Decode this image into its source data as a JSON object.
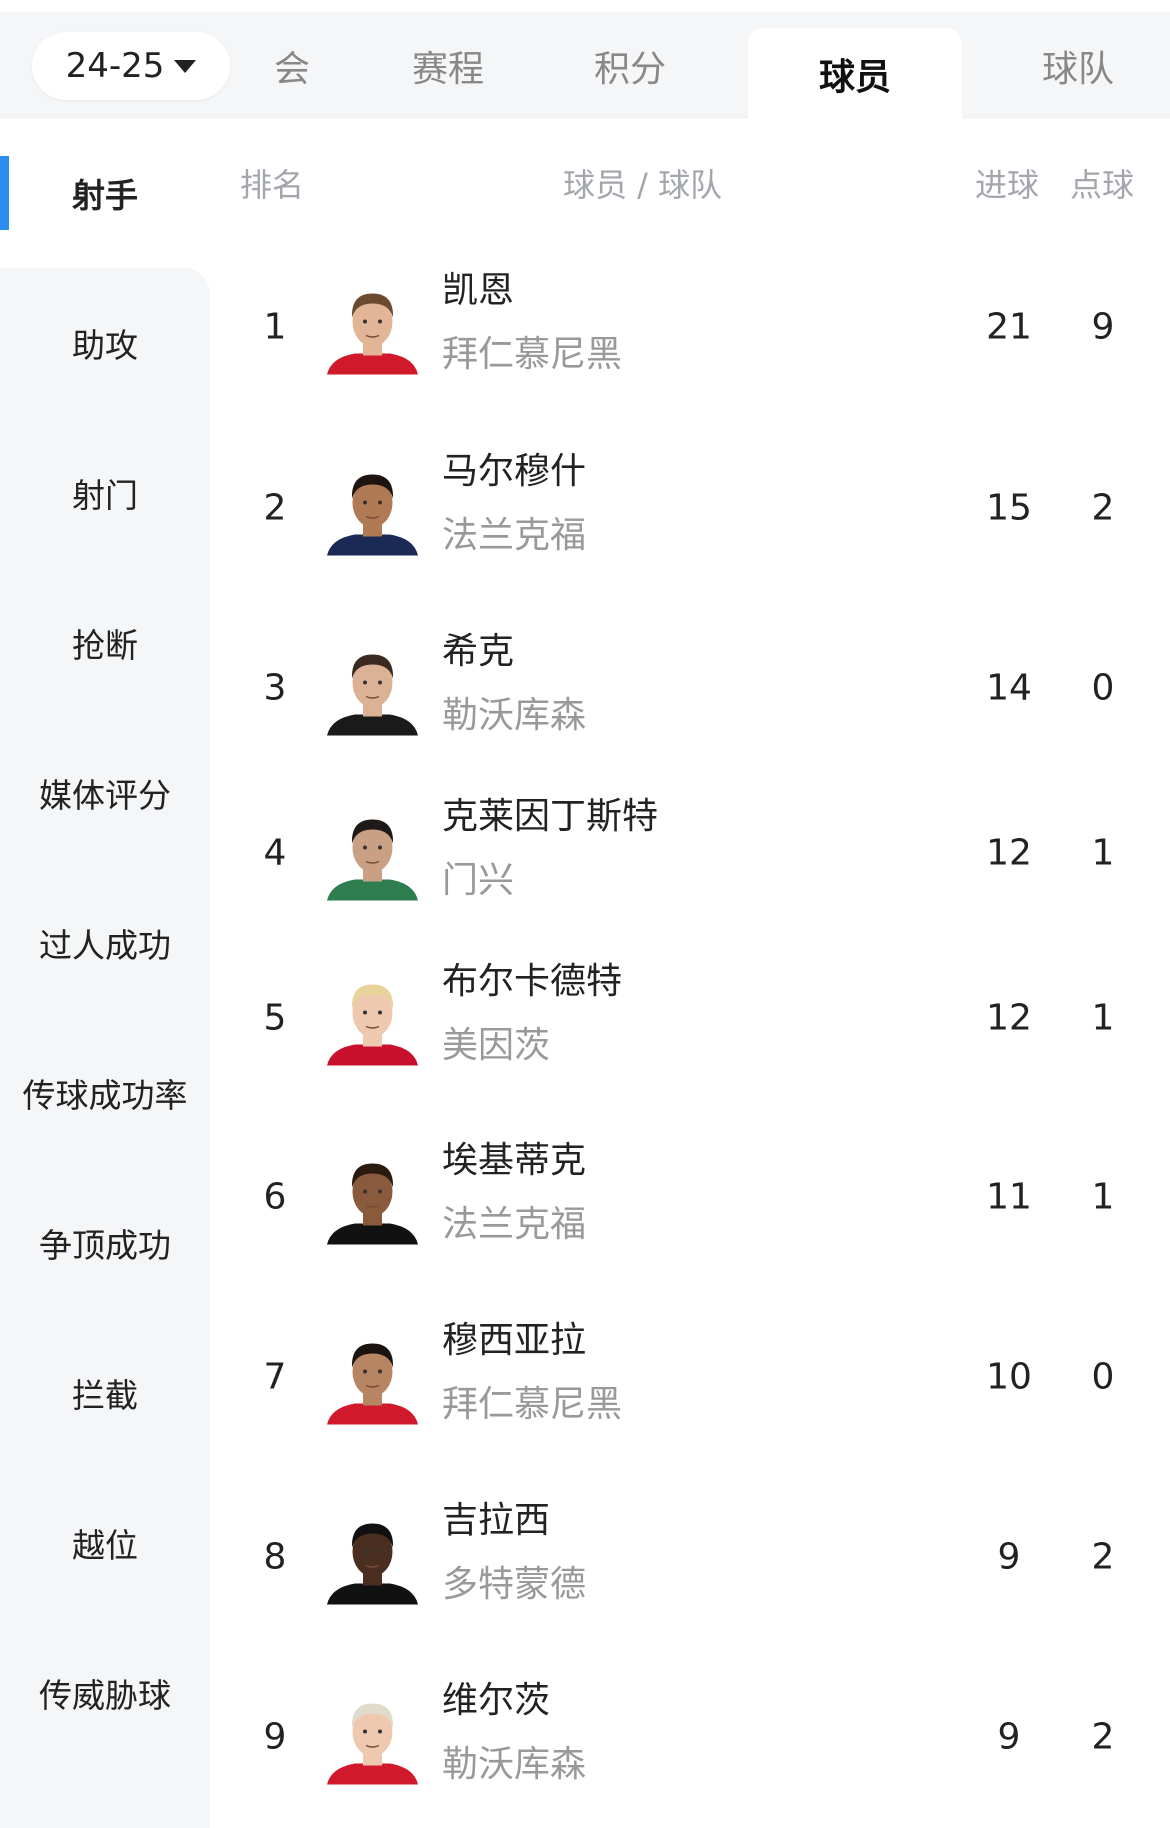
{
  "season_selector": {
    "value": "24-25"
  },
  "tabs": [
    {
      "label": "会"
    },
    {
      "label": "赛程"
    },
    {
      "label": "积分"
    },
    {
      "label": "球员",
      "active": true
    },
    {
      "label": "球队"
    }
  ],
  "sidebar": {
    "items": [
      {
        "label": "射手",
        "active": true
      },
      {
        "label": "助攻"
      },
      {
        "label": "射门"
      },
      {
        "label": "抢断"
      },
      {
        "label": "媒体评分"
      },
      {
        "label": "过人成功"
      },
      {
        "label": "传球成功率"
      },
      {
        "label": "争顶成功"
      },
      {
        "label": "拦截"
      },
      {
        "label": "越位"
      },
      {
        "label": "传威胁球"
      }
    ]
  },
  "accent_color": "#2d8cf0",
  "table": {
    "headers": {
      "rank": "排名",
      "player_team": "球员 / 球队",
      "goals": "进球",
      "penalties": "点球"
    },
    "rows": [
      {
        "rank": "1",
        "name": "凯恩",
        "team": "拜仁慕尼黑",
        "goals": "21",
        "penalties": "9",
        "jersey": "#d0192b",
        "skin": "#e2b597",
        "hair": "#6b4a32"
      },
      {
        "rank": "2",
        "name": "马尔穆什",
        "team": "法兰克福",
        "goals": "15",
        "penalties": "2",
        "jersey": "#1a2a55",
        "skin": "#b07a55",
        "hair": "#1e1410"
      },
      {
        "rank": "3",
        "name": "希克",
        "team": "勒沃库森",
        "goals": "14",
        "penalties": "0",
        "jersey": "#1a1a1a",
        "skin": "#dcb296",
        "hair": "#3a2a20"
      },
      {
        "rank": "4",
        "name": "克莱因丁斯特",
        "team": "门兴",
        "goals": "12",
        "penalties": "1",
        "jersey": "#2e7d4f",
        "skin": "#caa084",
        "hair": "#1e1a18"
      },
      {
        "rank": "5",
        "name": "布尔卡德特",
        "team": "美因茨",
        "goals": "12",
        "penalties": "1",
        "jersey": "#c8102e",
        "skin": "#efc8b0",
        "hair": "#e8d39a"
      },
      {
        "rank": "6",
        "name": "埃基蒂克",
        "team": "法兰克福",
        "goals": "11",
        "penalties": "1",
        "jersey": "#111111",
        "skin": "#8a5a3c",
        "hair": "#2a1a10"
      },
      {
        "rank": "7",
        "name": "穆西亚拉",
        "team": "拜仁慕尼黑",
        "goals": "10",
        "penalties": "0",
        "jersey": "#d0192b",
        "skin": "#b88562",
        "hair": "#1a1410"
      },
      {
        "rank": "8",
        "name": "吉拉西",
        "team": "多特蒙德",
        "goals": "9",
        "penalties": "2",
        "jersey": "#111111",
        "skin": "#4a2e20",
        "hair": "#111111"
      },
      {
        "rank": "9",
        "name": "维尔茨",
        "team": "勒沃库森",
        "goals": "9",
        "penalties": "2",
        "jersey": "#d0192b",
        "skin": "#efc8b0",
        "hair": "#e0dccc"
      }
    ]
  }
}
